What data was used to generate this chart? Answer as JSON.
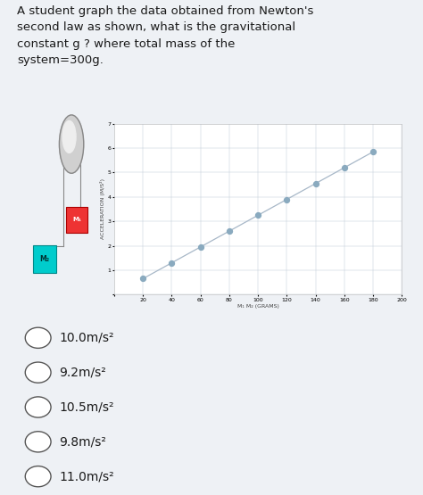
{
  "question_text_lines": [
    "A student graph the data obtained from Newton's",
    "second law as shown, what is the gravitational",
    "constant g ? where total mass of the",
    "system=300g."
  ],
  "x_data": [
    20,
    40,
    60,
    80,
    100,
    120,
    140,
    160,
    180
  ],
  "y_data": [
    0.65,
    1.3,
    1.95,
    2.6,
    3.25,
    3.9,
    4.55,
    5.2,
    5.85
  ],
  "xlabel": "M₁ M₂ (GRAMS)",
  "ylabel": "ACCELERATION (M/S²)",
  "xlim": [
    0,
    200
  ],
  "ylim": [
    0,
    7
  ],
  "xticks": [
    0,
    20,
    40,
    60,
    80,
    100,
    120,
    140,
    160,
    180,
    200
  ],
  "yticks": [
    0,
    1,
    2,
    3,
    4,
    5,
    6,
    7
  ],
  "line_color": "#a8b8c8",
  "marker_color": "#8aaabf",
  "marker_size": 18,
  "bg_color": "#eef1f5",
  "chart_bg": "#f5f7fa",
  "plot_bg": "#ffffff",
  "choices": [
    "10.0m/s²",
    "9.2m/s²",
    "10.5m/s²",
    "9.8m/s²",
    "11.0m/s²"
  ],
  "tick_fontsize": 4.5,
  "label_fontsize": 4.5,
  "choice_fontsize": 10,
  "m1_color": "#ee3333",
  "m2_color": "#00cccc",
  "pulley_color": "#cccccc",
  "rope_color": "#888888"
}
